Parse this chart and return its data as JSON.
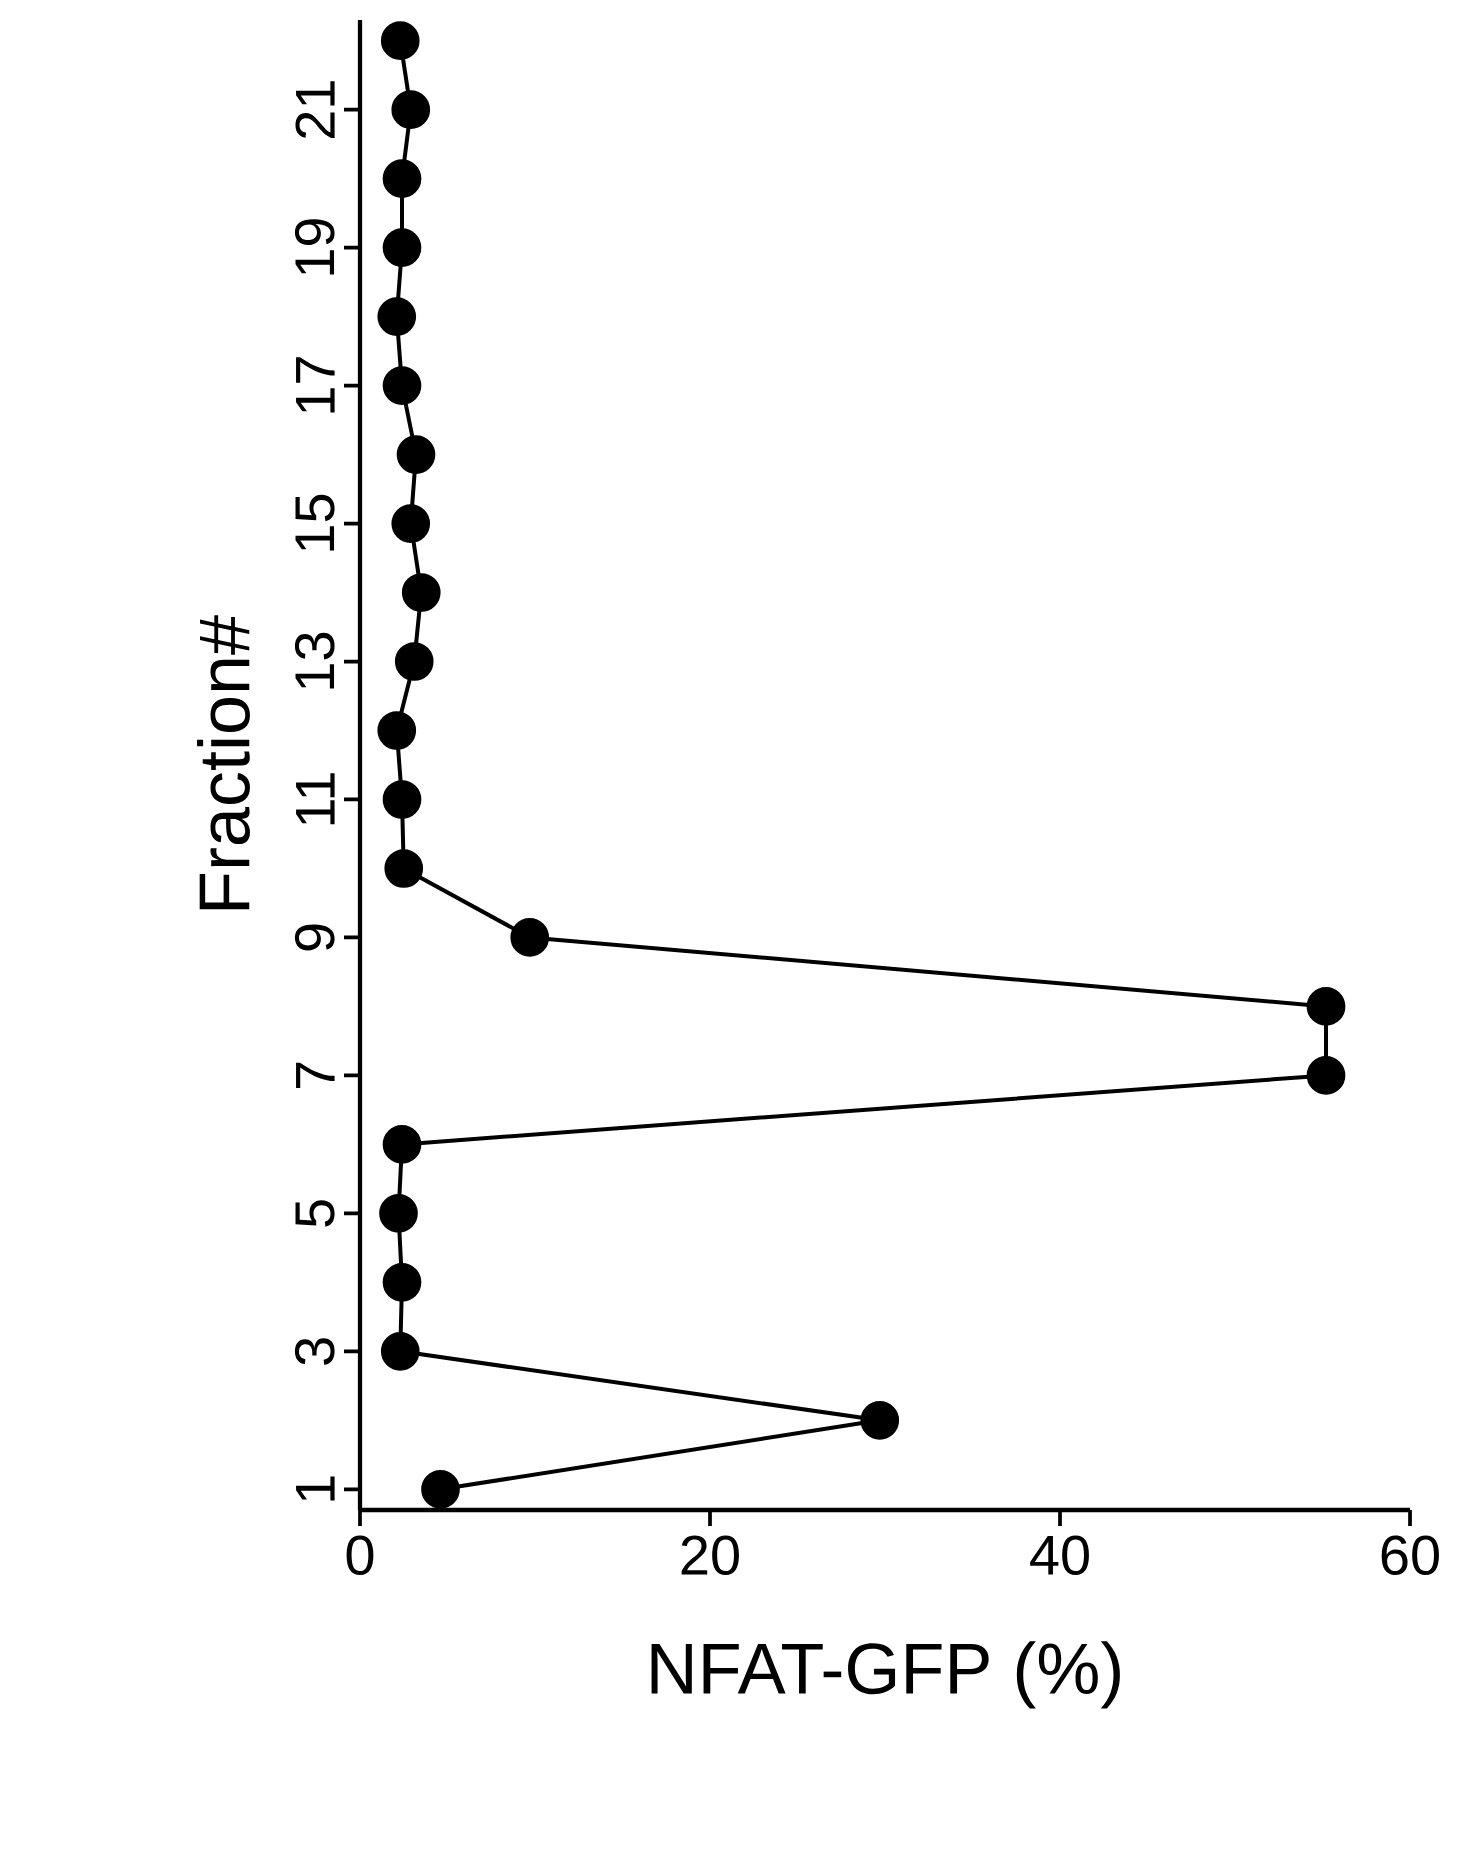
{
  "chart_data": {
    "type": "line",
    "xlabel": "NFAT-GFP (%)",
    "ylabel": "Fraction#",
    "x": [
      4.6,
      29.7,
      2.3,
      2.4,
      2.2,
      2.4,
      55.2,
      55.2,
      9.7,
      2.5,
      2.4,
      2.1,
      3.1,
      3.5,
      2.9,
      3.2,
      2.4,
      2.1,
      2.4,
      2.4,
      2.9,
      2.3
    ],
    "values": [
      1,
      2,
      3,
      4,
      5,
      6,
      7,
      8,
      9,
      10,
      11,
      12,
      13,
      14,
      15,
      16,
      17,
      18,
      19,
      20,
      21,
      22
    ],
    "color": "#000000",
    "marker": "circle",
    "line_style": "solid",
    "xlim": [
      0,
      60
    ],
    "xticks": [
      0,
      20,
      40,
      60
    ],
    "ylim": [
      0.7,
      22.3
    ],
    "yticks": [
      1,
      3,
      5,
      7,
      9,
      11,
      13,
      15,
      17,
      19,
      21
    ]
  }
}
